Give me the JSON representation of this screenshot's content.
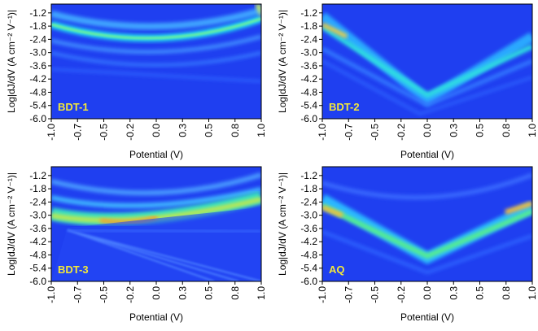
{
  "chart_data": [
    {
      "type": "heatmap",
      "label": "BDT-1",
      "xlabel": "Potential (V)",
      "ylabel": "Log|dJ/dV (A cm⁻² V⁻¹)|",
      "xlim": [
        -1,
        1
      ],
      "ylim": [
        -6,
        -0.8
      ],
      "xticks": [
        {
          "value": -1,
          "label": "-1.0"
        },
        {
          "value": -0.75,
          "label": "-0.7"
        },
        -0.5,
        {
          "value": -0.25,
          "label": "-0.2"
        },
        {
          "value": 0,
          "label": "0.0"
        },
        {
          "value": 0.25,
          "label": "0.3"
        },
        0.5,
        {
          "value": 0.75,
          "label": "0.8"
        },
        {
          "value": 1,
          "label": "1.0"
        }
      ],
      "yticks": [
        -1.2,
        -1.8,
        -2.4,
        {
          "value": -3,
          "label": "-3.0"
        },
        -3.6,
        -4.2,
        -4.8,
        -5.4,
        {
          "value": -6,
          "label": "-6.0"
        }
      ]
    },
    {
      "type": "heatmap",
      "label": "BDT-2",
      "xlabel": "Potential (V)",
      "ylabel": "Log|dJ/dV (A cm⁻² V⁻¹)|",
      "xlim": [
        -1,
        1
      ],
      "ylim": [
        -6,
        -0.8
      ],
      "xticks": [
        {
          "value": -1,
          "label": "-1.0"
        },
        {
          "value": -0.75,
          "label": "-0.7"
        },
        -0.5,
        {
          "value": -0.25,
          "label": "-0.2"
        },
        {
          "value": 0,
          "label": "0.0"
        },
        {
          "value": 0.25,
          "label": "0.3"
        },
        0.5,
        {
          "value": 0.75,
          "label": "0.8"
        },
        {
          "value": 1,
          "label": "1.0"
        }
      ],
      "yticks": [
        -1.2,
        -1.8,
        -2.4,
        {
          "value": -3,
          "label": "-3.0"
        },
        -3.6,
        -4.2,
        -4.8,
        -5.4,
        {
          "value": -6,
          "label": "-6.0"
        }
      ]
    },
    {
      "type": "heatmap",
      "label": "BDT-3",
      "xlabel": "Potential (V)",
      "ylabel": "Log|dJ/dV (A cm⁻² V⁻¹)|",
      "xlim": [
        -1,
        1
      ],
      "ylim": [
        -6,
        -0.8
      ],
      "xticks": [
        {
          "value": -1,
          "label": "-1.0"
        },
        {
          "value": -0.75,
          "label": "-0.7"
        },
        -0.5,
        {
          "value": -0.25,
          "label": "-0.2"
        },
        {
          "value": 0,
          "label": "0.0"
        },
        {
          "value": 0.25,
          "label": "0.3"
        },
        0.5,
        {
          "value": 0.75,
          "label": "0.8"
        },
        {
          "value": 1,
          "label": "1.0"
        }
      ],
      "yticks": [
        -1.2,
        -1.8,
        -2.4,
        {
          "value": -3,
          "label": "-3.0"
        },
        -3.6,
        -4.2,
        -4.8,
        -5.4,
        {
          "value": -6,
          "label": "-6.0"
        }
      ]
    },
    {
      "type": "heatmap",
      "label": "AQ",
      "xlabel": "Potential (V)",
      "ylabel": "Log|dJ/dV (A cm⁻² V⁻¹)|",
      "xlim": [
        -1,
        1
      ],
      "ylim": [
        -6,
        -0.8
      ],
      "xticks": [
        {
          "value": -1,
          "label": "-1.0"
        },
        {
          "value": -0.75,
          "label": "-0.7"
        },
        -0.5,
        {
          "value": -0.25,
          "label": "-0.2"
        },
        {
          "value": 0,
          "label": "0.0"
        },
        {
          "value": 0.25,
          "label": "0.3"
        },
        0.5,
        {
          "value": 0.75,
          "label": "0.8"
        },
        {
          "value": 1,
          "label": "1.0"
        }
      ],
      "yticks": [
        -1.2,
        -1.8,
        -2.4,
        {
          "value": -3,
          "label": "-3.0"
        },
        -3.6,
        -4.2,
        -4.8,
        -5.4,
        {
          "value": -6,
          "label": "-6.0"
        }
      ]
    }
  ]
}
